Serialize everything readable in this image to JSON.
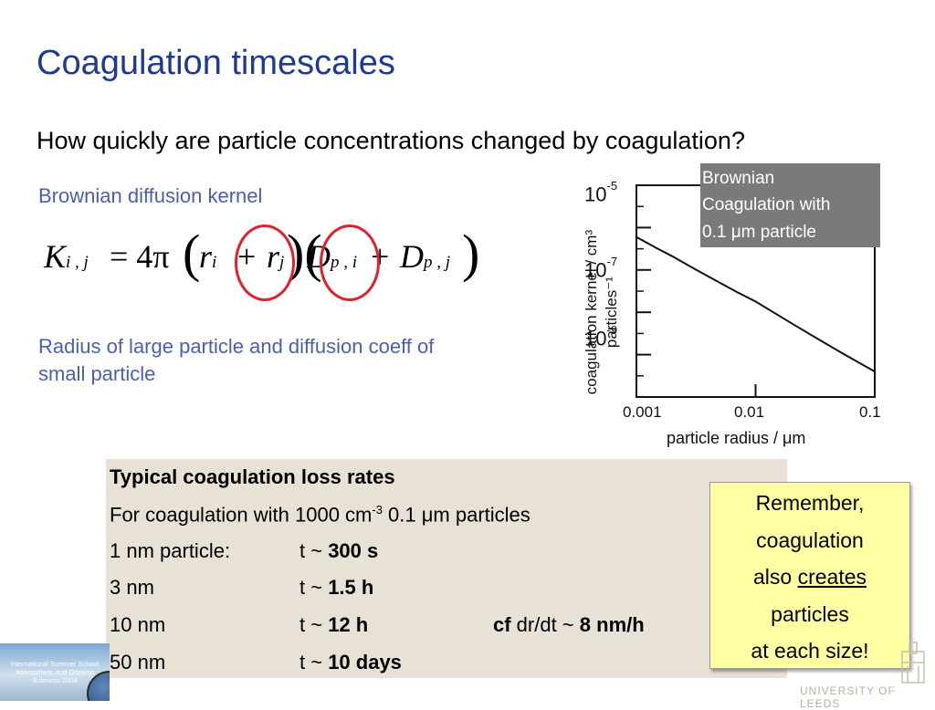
{
  "slide": {
    "title": "Coagulation timescales",
    "question": "How quickly are particle concentrations changed by coagulation?",
    "kernel_heading": "Brownian diffusion kernel",
    "radius_note": "Radius of large particle and diffusion coeff of small particle",
    "equation": {
      "K": "K",
      "K_sub": "i , j",
      "equals": "= 4π",
      "r": "r",
      "r_sub_i": "i",
      "plus": "+",
      "r_sub_j": "j",
      "D": "D",
      "D_sub_pi": "p , i",
      "D_sub_pj": "p , j"
    }
  },
  "chart_data": {
    "type": "line",
    "title": "",
    "xlabel": "particle radius / μm",
    "ylabel": "coagulation kernel / cm³ particles⁻¹",
    "xscale": "log",
    "yscale": "log",
    "xlim": [
      0.001,
      0.1
    ],
    "ylim": [
      1e-10,
      1e-05
    ],
    "x_ticks": [
      "0.001",
      "0.01",
      "0.1"
    ],
    "y_ticks": [
      "10-5",
      "10-7",
      "10-9"
    ],
    "series": [
      {
        "name": "Brownian Coagulation with 0.1 μm particle",
        "x": [
          0.001,
          0.0015,
          0.002,
          0.003,
          0.005,
          0.007,
          0.01,
          0.015,
          0.02,
          0.03,
          0.05,
          0.07,
          0.1
        ],
        "y": [
          6e-07,
          3.2e-07,
          2.1e-07,
          1.1e-07,
          5e-08,
          3e-08,
          1.8e-08,
          9e-09,
          5.5e-09,
          2.8e-09,
          1.2e-09,
          7e-10,
          4e-10
        ]
      }
    ],
    "legend": {
      "text_lines": [
        "Brownian",
        "Coagulation with",
        "0.1 μm particle"
      ],
      "placement": "top-right",
      "background": "#7a7a7a"
    }
  },
  "loss_table": {
    "heading": "Typical coagulation loss rates",
    "subheading_pre": "For coagulation with 1000 cm",
    "subheading_sup": "-3",
    "subheading_post": " 0.1 μm particles",
    "rows": [
      {
        "size": "1 nm particle:",
        "t_pre": "t ~ ",
        "t_val": "300 s"
      },
      {
        "size": "3 nm",
        "t_pre": "t ~ ",
        "t_val": "1.5 h"
      },
      {
        "size": "10 nm",
        "t_pre": "t ~ ",
        "t_val": "12 h",
        "cf": "cf",
        "cf_mid": " dr/dt ~ ",
        "cf_val": "8 nm/h"
      },
      {
        "size": "50 nm",
        "t_pre": "t ~ ",
        "t_val": "10 days"
      }
    ]
  },
  "note": {
    "line1": "Remember,",
    "line2": "coagulation",
    "line3_pre": "also ",
    "line3_u": "creates",
    "line4": "particles",
    "line5": "at each size!"
  },
  "logos": {
    "left_text": "International Summer School Atmospheric and Oceanic Sciences 2004",
    "right_text": "UNIVERSITY OF LEEDS"
  },
  "colors": {
    "title": "#1f3b8f",
    "subheading": "#4a5fb4",
    "circle": "#e0212b",
    "table_bg": "#e7e1d6",
    "note_bg": "#ffffa3"
  }
}
